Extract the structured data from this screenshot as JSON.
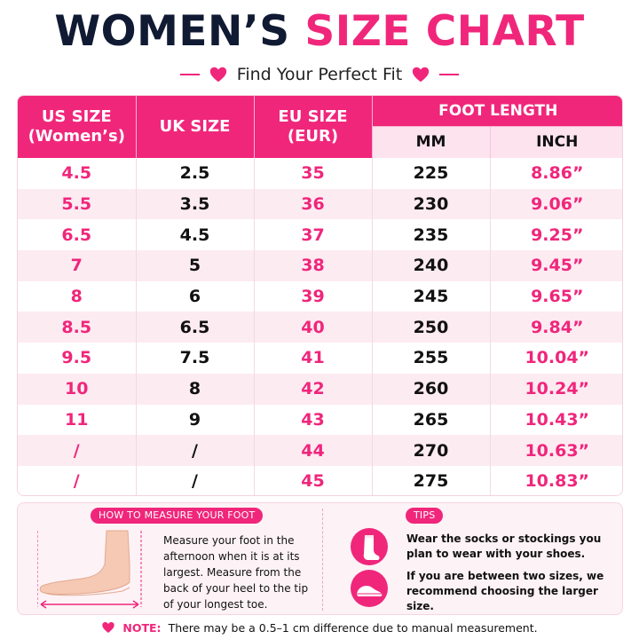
{
  "title": {
    "part1": "WOMEN’S",
    "part2": "SIZE CHART"
  },
  "subtitle": "Find Your Perfect Fit",
  "colors": {
    "accent": "#f0267b",
    "dark": "#101a33",
    "row_tint": "#fdebf2"
  },
  "table": {
    "headers": {
      "us": "US SIZE\n(Women’s)",
      "uk": "UK SIZE",
      "eu": "EU SIZE\n(EUR)",
      "foot_length": "FOOT LENGTH",
      "mm": "MM",
      "inch": "INCH"
    },
    "rows": [
      [
        "4.5",
        "2.5",
        "35",
        "225",
        "8.86”"
      ],
      [
        "5.5",
        "3.5",
        "36",
        "230",
        "9.06”"
      ],
      [
        "6.5",
        "4.5",
        "37",
        "235",
        "9.25”"
      ],
      [
        "7",
        "5",
        "38",
        "240",
        "9.45”"
      ],
      [
        "8",
        "6",
        "39",
        "245",
        "9.65”"
      ],
      [
        "8.5",
        "6.5",
        "40",
        "250",
        "9.84”"
      ],
      [
        "9.5",
        "7.5",
        "41",
        "255",
        "10.04”"
      ],
      [
        "10",
        "8",
        "42",
        "260",
        "10.24”"
      ],
      [
        "11",
        "9",
        "43",
        "265",
        "10.43”"
      ],
      [
        "/",
        "/",
        "44",
        "270",
        "10.63”"
      ],
      [
        "/",
        "/",
        "45",
        "275",
        "10.83”"
      ]
    ]
  },
  "measure": {
    "label": "HOW TO MEASURE YOUR FOOT",
    "text": "Measure your foot in the afternoon when it is at its largest. Measure from the back of your heel to the tip of your longest toe.",
    "icon": "foot-illustration"
  },
  "tips": {
    "label": "TIPS",
    "items": [
      {
        "icon": "sock-icon",
        "text": "Wear the socks or stockings you plan to wear with your shoes."
      },
      {
        "icon": "shoe-icon",
        "text": "If you are between two sizes, we recommend choosing the larger size."
      }
    ]
  },
  "note": {
    "label": "NOTE:",
    "text": "There may be a 0.5–1 cm difference due to manual measurement.",
    "icon": "heart-icon"
  }
}
